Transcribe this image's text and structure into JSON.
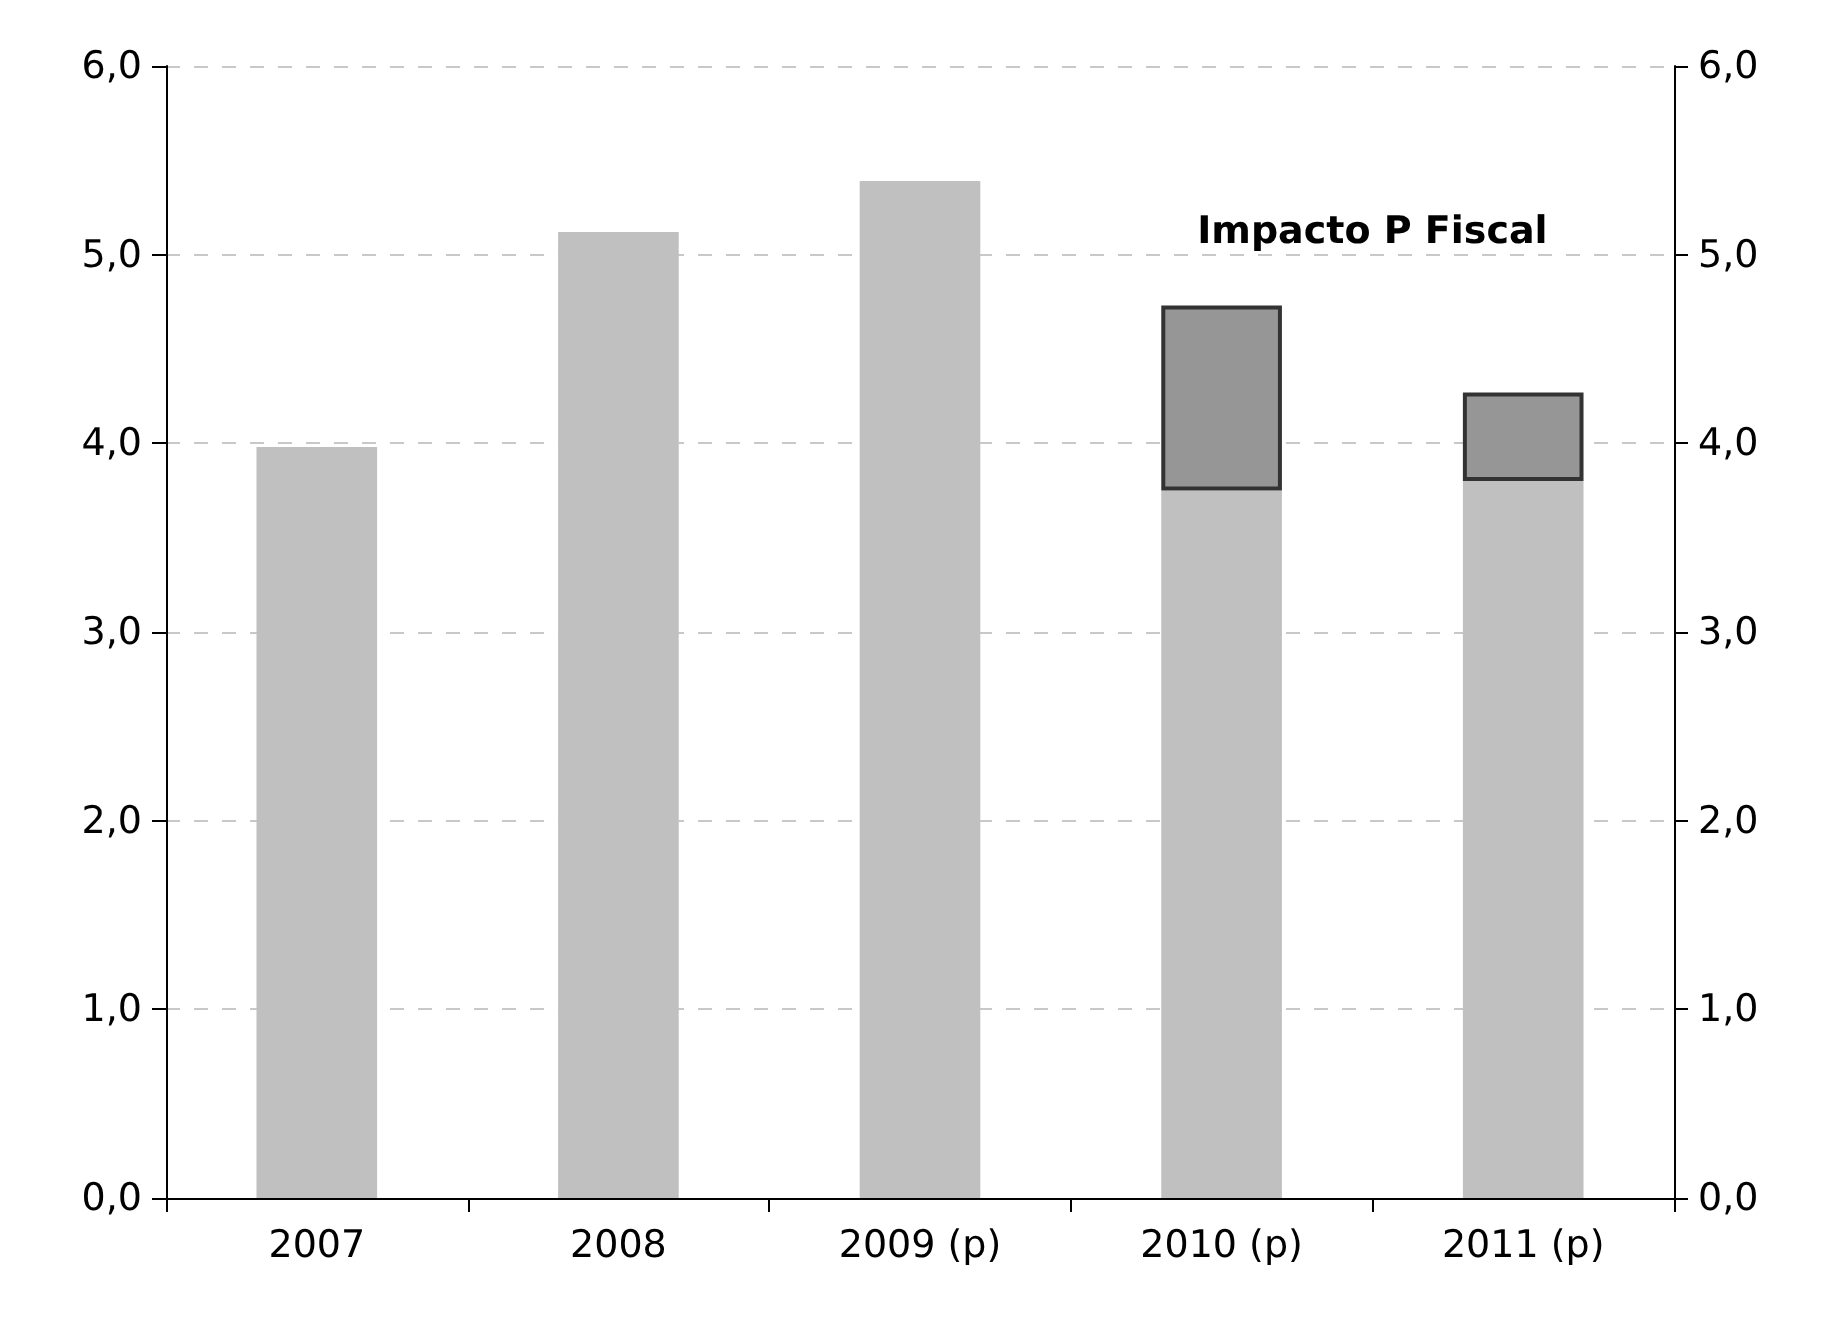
{
  "chart_data": {
    "type": "bar",
    "stacked": true,
    "categories": [
      "2007",
      "2008",
      "2009 (p)",
      "2010 (p)",
      "2011 (p)"
    ],
    "series": [
      {
        "color": "#c0c0c0",
        "values": [
          3.98,
          5.12,
          5.39,
          3.75,
          3.8
        ]
      },
      {
        "name": "Impacto P Fiscal",
        "color": "#969696",
        "values": [
          null,
          null,
          null,
          0.98,
          0.47
        ]
      }
    ],
    "ylim": [
      0,
      6
    ],
    "yticks": [
      {
        "value": 0,
        "label": "0,0"
      },
      {
        "value": 1,
        "label": "1,0"
      },
      {
        "value": 2,
        "label": "2,0"
      },
      {
        "value": 3,
        "label": "3,0"
      },
      {
        "value": 4,
        "label": "4,0"
      },
      {
        "value": 5,
        "label": "5,0"
      },
      {
        "value": 6,
        "label": "6,0"
      }
    ],
    "y2lim": [
      0,
      6
    ],
    "y2ticks": [
      {
        "value": 0,
        "label": "0,0"
      },
      {
        "value": 1,
        "label": "1,0"
      },
      {
        "value": 2,
        "label": "2,0"
      },
      {
        "value": 3,
        "label": "3,0"
      },
      {
        "value": 4,
        "label": "4,0"
      },
      {
        "value": 5,
        "label": "5,0"
      },
      {
        "value": 6,
        "label": "6,0"
      }
    ],
    "grid": "y",
    "legend": false
  }
}
